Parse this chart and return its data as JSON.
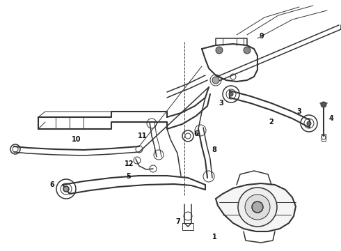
{
  "bg_color": "#ffffff",
  "line_color": "#333333",
  "label_color": "#111111",
  "label_fontsize": 7,
  "fig_width": 4.9,
  "fig_height": 3.6,
  "dpi": 100
}
